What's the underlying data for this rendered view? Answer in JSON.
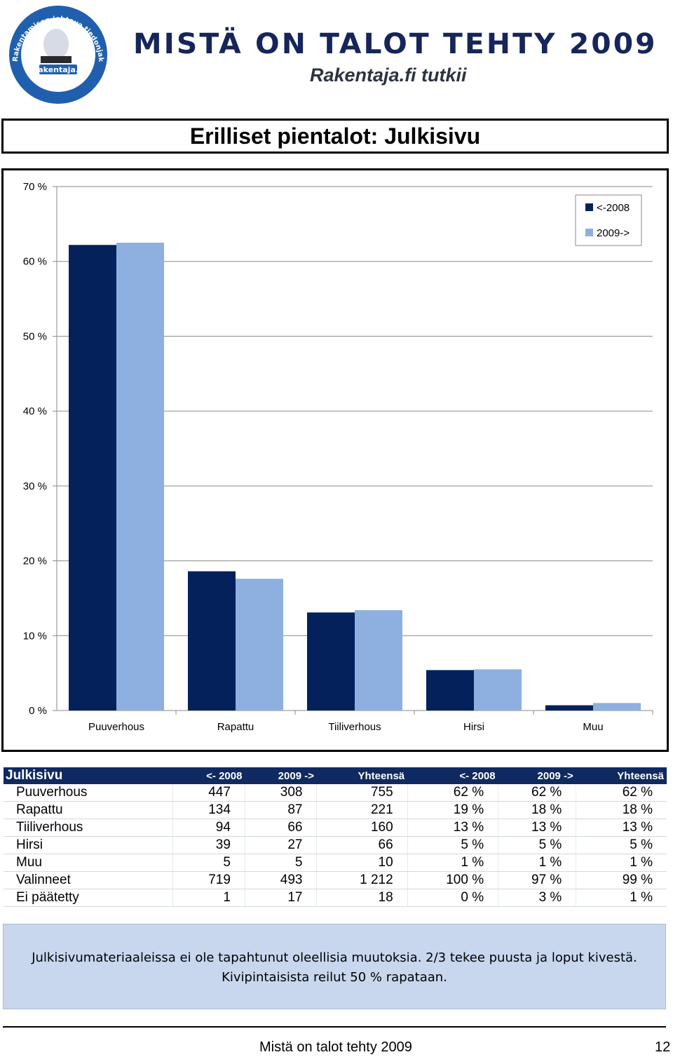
{
  "header": {
    "logo_text_arc": "Rakentamisen johtava tiedonjakaja",
    "logo_brand": "Rakentaja.fi",
    "logo_sub": "Tutkii",
    "title": "MISTÄ ON TALOT TEHTY 2009",
    "subtitle": "Rakentaja.fi tutkii"
  },
  "chart_title": "Erilliset pientalot: Julkisivu",
  "chart_data": {
    "type": "bar",
    "categories": [
      "Puuverhous",
      "Rapattu",
      "Tiiliverhous",
      "Hirsi",
      "Muu"
    ],
    "series": [
      {
        "name": "<-2008",
        "color": "#04215b",
        "values": [
          62.2,
          18.6,
          13.1,
          5.4,
          0.7
        ]
      },
      {
        "name": "2009->",
        "color": "#8db0e0",
        "values": [
          62.5,
          17.6,
          13.4,
          5.5,
          1.0
        ]
      }
    ],
    "ylim": [
      0,
      70
    ],
    "yticks": [
      "0 %",
      "10 %",
      "20 %",
      "30 %",
      "40 %",
      "50 %",
      "60 %",
      "70 %"
    ],
    "grid": true,
    "legend": "top-right"
  },
  "table": {
    "headers": [
      "Julkisivu",
      "<- 2008",
      "2009 ->",
      "Yhteensä",
      "<- 2008",
      "2009 ->",
      "Yhteensä"
    ],
    "rows": [
      [
        "Puuverhous",
        "447",
        "308",
        "755",
        "62 %",
        "62 %",
        "62 %"
      ],
      [
        "Rapattu",
        "134",
        "87",
        "221",
        "19 %",
        "18 %",
        "18 %"
      ],
      [
        "Tiiliverhous",
        "94",
        "66",
        "160",
        "13 %",
        "13 %",
        "13 %"
      ],
      [
        "Hirsi",
        "39",
        "27",
        "66",
        "5 %",
        "5 %",
        "5 %"
      ],
      [
        "Muu",
        "5",
        "5",
        "10",
        "1 %",
        "1 %",
        "1 %"
      ],
      [
        "Valinneet",
        "719",
        "493",
        "1 212",
        "100 %",
        "97 %",
        "99 %"
      ],
      [
        "Ei päätetty",
        "1",
        "17",
        "18",
        "0 %",
        "3 %",
        "1 %"
      ]
    ]
  },
  "note": {
    "line1": "Julkisivumateriaaleissa ei ole tapahtunut oleellisia muutoksia. 2/3 tekee puusta ja loput kivestä.",
    "line2": "Kivipintaisista reilut 50 % rapataan."
  },
  "footer": {
    "text": "Mistä on talot tehty 2009",
    "page": "12"
  }
}
